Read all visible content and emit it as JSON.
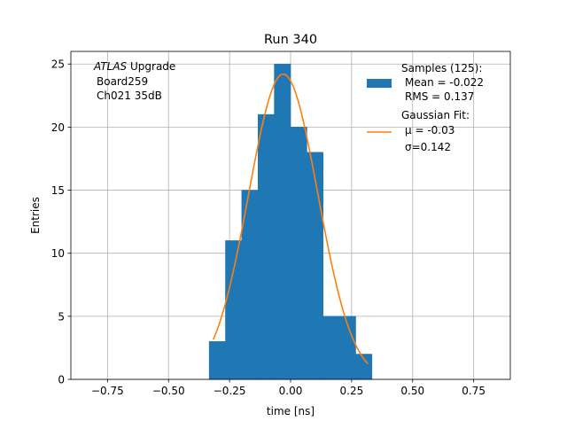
{
  "chart_data": {
    "type": "bar",
    "title": "Run 340",
    "xlabel": "time [ns]",
    "ylabel": "Entries",
    "xlim": [
      -0.9,
      0.9
    ],
    "ylim": [
      0,
      26
    ],
    "grid": true,
    "x_ticks": [
      -0.75,
      -0.5,
      -0.25,
      0.0,
      0.25,
      0.5,
      0.75
    ],
    "x_tick_labels": [
      "−0.75",
      "−0.50",
      "−0.25",
      "0.00",
      "0.25",
      "0.50",
      "0.75"
    ],
    "y_ticks": [
      0,
      5,
      10,
      15,
      20,
      25
    ],
    "y_tick_labels": [
      "0",
      "5",
      "10",
      "15",
      "20",
      "25"
    ],
    "histogram": {
      "bin_edges": [
        -0.3333,
        -0.2667,
        -0.2,
        -0.1333,
        -0.0667,
        0.0,
        0.0667,
        0.1333,
        0.2,
        0.2667,
        0.3333
      ],
      "counts": [
        3,
        11,
        15,
        21,
        25,
        20,
        18,
        5,
        5,
        2
      ],
      "color": "#1f77b4"
    },
    "fit": {
      "type": "gaussian",
      "mu": -0.03,
      "sigma": 0.142,
      "amplitude": 24.2,
      "x_range": [
        -0.3167,
        0.3167
      ],
      "color": "#ff7f0e"
    },
    "annotation": {
      "line1_italic": "ATLAS",
      "line1_rest": " Upgrade",
      "line2": "Board259",
      "line3": "Ch021 35dB"
    },
    "legend": {
      "placement": "top-right",
      "entries": [
        {
          "lines": [
            "Samples (125):",
            "Mean = -0.022",
            "RMS = 0.137"
          ],
          "marker": "patch",
          "color": "#1f77b4"
        },
        {
          "lines": [
            "Gaussian Fit:",
            "μ = -0.03",
            "σ=0.142"
          ],
          "marker": "line",
          "color": "#ff7f0e"
        }
      ]
    }
  }
}
